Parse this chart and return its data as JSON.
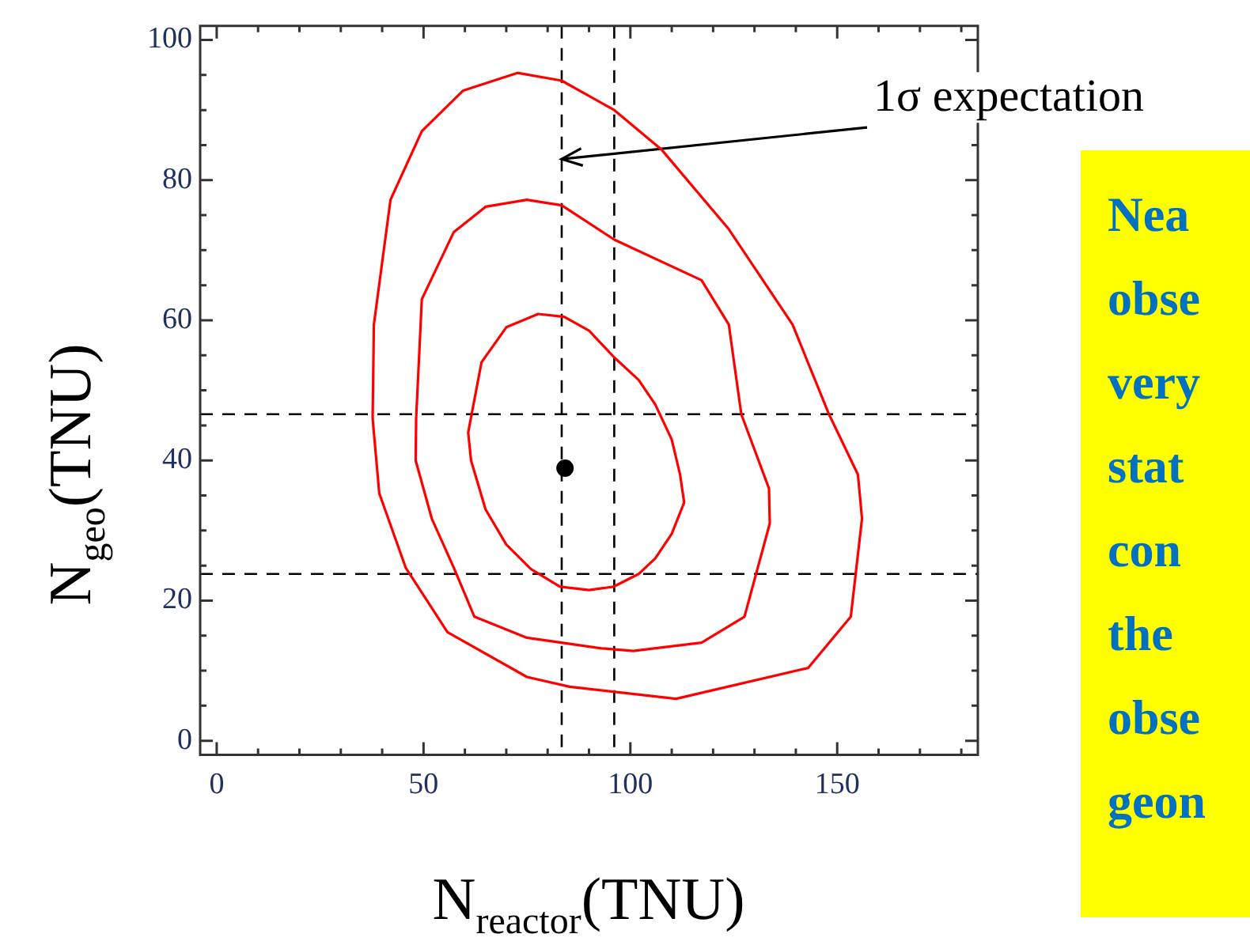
{
  "chart_data": {
    "type": "line",
    "xlabel": "N$_{reactor}$(TNU)",
    "ylabel": "N$_{geo}$(TNU)",
    "xlim": [
      -4,
      184
    ],
    "ylim": [
      -2,
      102
    ],
    "xticks": [
      0,
      {
        "value": 10,
        "label": null
      },
      {
        "value": 20,
        "label": null
      },
      {
        "value": 30,
        "label": null
      },
      {
        "value": 40,
        "label": null
      },
      50,
      {
        "value": 60,
        "label": null
      },
      {
        "value": 70,
        "label": null
      },
      {
        "value": 80,
        "label": null
      },
      {
        "value": 90,
        "label": null
      },
      100,
      {
        "value": 110,
        "label": null
      },
      {
        "value": 120,
        "label": null
      },
      {
        "value": 130,
        "label": null
      },
      {
        "value": 140,
        "label": null
      },
      150,
      {
        "value": 160,
        "label": null
      },
      {
        "value": 170,
        "label": null
      },
      {
        "value": 180,
        "label": null
      }
    ],
    "yticks": [
      0,
      {
        "value": 5,
        "label": null
      },
      {
        "value": 10,
        "label": null
      },
      {
        "value": 15,
        "label": null
      },
      20,
      {
        "value": 25,
        "label": null
      },
      {
        "value": 30,
        "label": null
      },
      {
        "value": 35,
        "label": null
      },
      40,
      {
        "value": 45,
        "label": null
      },
      {
        "value": 50,
        "label": null
      },
      {
        "value": 55,
        "label": null
      },
      60,
      {
        "value": 65,
        "label": null
      },
      {
        "value": 70,
        "label": null
      },
      {
        "value": 75,
        "label": null
      },
      80,
      {
        "value": 85,
        "label": null
      },
      {
        "value": 90,
        "label": null
      },
      {
        "value": 95,
        "label": null
      },
      100
    ],
    "series": [
      {
        "type": "scatter",
        "color": "#000000",
        "marker": "circle",
        "x": [
          84.2
        ],
        "values": [
          38.9
        ]
      }
    ],
    "ref_lines": [
      {
        "axis": "x",
        "value": 83.4,
        "color": "#000000",
        "line_style": "dashed"
      },
      {
        "axis": "x",
        "value": 96.1,
        "color": "#000000",
        "line_style": "dashed"
      },
      {
        "axis": "y",
        "value": 46.6,
        "color": "#000000",
        "line_style": "dashed"
      },
      {
        "axis": "y",
        "value": 23.8,
        "color": "#000000",
        "line_style": "dashed"
      }
    ],
    "annotations": [
      {
        "text": "1σ expectation",
        "x": 83.4,
        "y": 83
      },
      "Nea\nobse\nvery\nstat\ncon\nthe\nobse\ngeon"
    ]
  }
}
